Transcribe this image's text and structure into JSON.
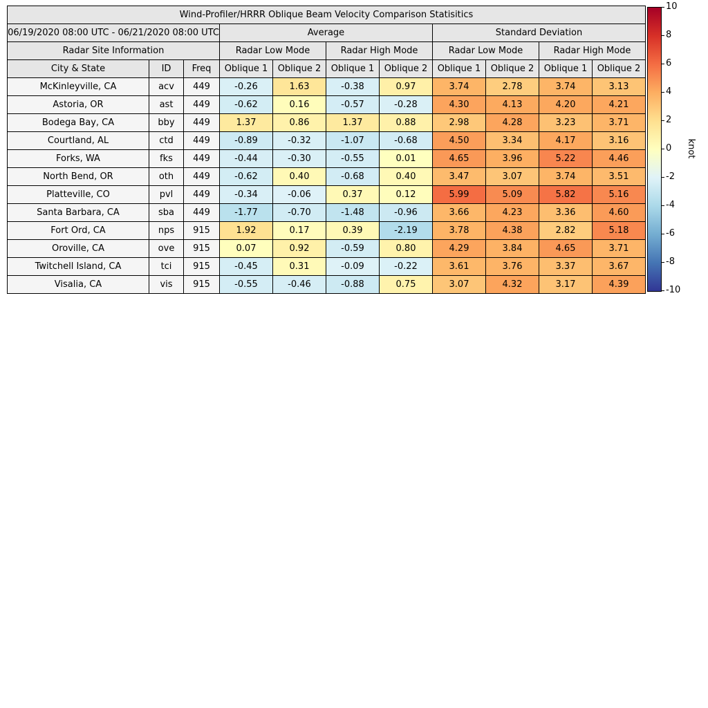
{
  "table_header": {
    "title": "Wind-Profiler/HRRR Oblique Beam Velocity Comparison Statisitics",
    "date_range": "06/19/2020 08:00 UTC - 06/21/2020 08:00 UTC",
    "avg_label": "Average",
    "std_label": "Standard Deviation",
    "site_info_label": "Radar Site Information",
    "mode_labels": [
      "Radar Low Mode",
      "Radar High Mode",
      "Radar Low Mode",
      "Radar High Mode"
    ],
    "site_cols": [
      "City & State",
      "ID",
      "Freq"
    ],
    "oblique_labels": [
      "Oblique 1",
      "Oblique 2",
      "Oblique 1",
      "Oblique 2",
      "Oblique 1",
      "Oblique 2",
      "Oblique 1",
      "Oblique 2"
    ]
  },
  "chart_data": {
    "type": "table",
    "title": "Wind-Profiler/HRRR Oblique Beam Velocity Comparison Statisitics",
    "date_range": "06/19/2020 08:00 UTC - 06/21/2020 08:00 UTC",
    "value_unit": "knot",
    "vmin": -10,
    "vmax": 10,
    "value_columns": [
      "Average / Radar Low Mode / Oblique 1",
      "Average / Radar Low Mode / Oblique 2",
      "Average / Radar High Mode / Oblique 1",
      "Average / Radar High Mode / Oblique 2",
      "Standard Deviation / Radar Low Mode / Oblique 1",
      "Standard Deviation / Radar Low Mode / Oblique 2",
      "Standard Deviation / Radar High Mode / Oblique 1",
      "Standard Deviation / Radar High Mode / Oblique 2"
    ],
    "rows": [
      {
        "city": "McKinleyville, CA",
        "id": "acv",
        "freq": "449",
        "values": [
          -0.26,
          1.63,
          -0.38,
          0.97,
          3.74,
          2.78,
          3.74,
          3.13
        ]
      },
      {
        "city": "Astoria, OR",
        "id": "ast",
        "freq": "449",
        "values": [
          -0.62,
          0.16,
          -0.57,
          -0.28,
          4.3,
          4.13,
          4.2,
          4.21
        ]
      },
      {
        "city": "Bodega Bay, CA",
        "id": "bby",
        "freq": "449",
        "values": [
          1.37,
          0.86,
          1.37,
          0.88,
          2.98,
          4.28,
          3.23,
          3.71
        ]
      },
      {
        "city": "Courtland, AL",
        "id": "ctd",
        "freq": "449",
        "values": [
          -0.89,
          -0.32,
          -1.07,
          -0.68,
          4.5,
          3.34,
          4.17,
          3.16
        ]
      },
      {
        "city": "Forks, WA",
        "id": "fks",
        "freq": "449",
        "values": [
          -0.44,
          -0.3,
          -0.55,
          0.01,
          4.65,
          3.96,
          5.22,
          4.46
        ]
      },
      {
        "city": "North Bend, OR",
        "id": "oth",
        "freq": "449",
        "values": [
          -0.62,
          0.4,
          -0.68,
          0.4,
          3.47,
          3.07,
          3.74,
          3.51
        ]
      },
      {
        "city": "Platteville, CO",
        "id": "pvl",
        "freq": "449",
        "values": [
          -0.34,
          -0.06,
          0.37,
          0.12,
          5.99,
          5.09,
          5.82,
          5.16
        ]
      },
      {
        "city": "Santa Barbara, CA",
        "id": "sba",
        "freq": "449",
        "values": [
          -1.77,
          -0.7,
          -1.48,
          -0.96,
          3.66,
          4.23,
          3.36,
          4.6
        ]
      },
      {
        "city": "Fort Ord, CA",
        "id": "nps",
        "freq": "915",
        "values": [
          1.92,
          0.17,
          0.39,
          -2.19,
          3.78,
          4.38,
          2.82,
          5.18
        ]
      },
      {
        "city": "Oroville, CA",
        "id": "ove",
        "freq": "915",
        "values": [
          0.07,
          0.92,
          -0.59,
          0.8,
          4.29,
          3.84,
          4.65,
          3.71
        ]
      },
      {
        "city": "Twitchell Island, CA",
        "id": "tci",
        "freq": "915",
        "values": [
          -0.45,
          0.31,
          -0.09,
          -0.22,
          3.61,
          3.76,
          3.37,
          3.67
        ]
      },
      {
        "city": "Visalia, CA",
        "id": "vis",
        "freq": "915",
        "values": [
          -0.55,
          -0.46,
          -0.88,
          0.75,
          3.07,
          4.32,
          3.17,
          4.39
        ]
      }
    ]
  },
  "colormap": {
    "positive": [
      {
        "v": 0,
        "c": "#ffffbf"
      },
      {
        "v": 2,
        "c": "#fee090"
      },
      {
        "v": 4,
        "c": "#fdae61"
      },
      {
        "v": 6,
        "c": "#f46d43"
      },
      {
        "v": 8,
        "c": "#d73027"
      },
      {
        "v": 10,
        "c": "#a50026"
      }
    ],
    "negative": [
      {
        "v": 0,
        "c": "#e0f3f8"
      },
      {
        "v": 2.5,
        "c": "#abd9e9"
      },
      {
        "v": 5,
        "c": "#74add1"
      },
      {
        "v": 7.5,
        "c": "#4575b4"
      },
      {
        "v": 10,
        "c": "#313695"
      }
    ]
  },
  "colorbar": {
    "label": "knot",
    "vmin": -10,
    "vmax": 10,
    "ticks": [
      10,
      8,
      6,
      4,
      2,
      0,
      -2,
      -4,
      -6,
      -8,
      -10
    ],
    "gradient_top_to_bottom": [
      "#a50026",
      "#d73027",
      "#f46d43",
      "#fdae61",
      "#fee090",
      "#ffffbf",
      "#e0f3f8",
      "#abd9e9",
      "#74add1",
      "#4575b4",
      "#313695"
    ]
  }
}
